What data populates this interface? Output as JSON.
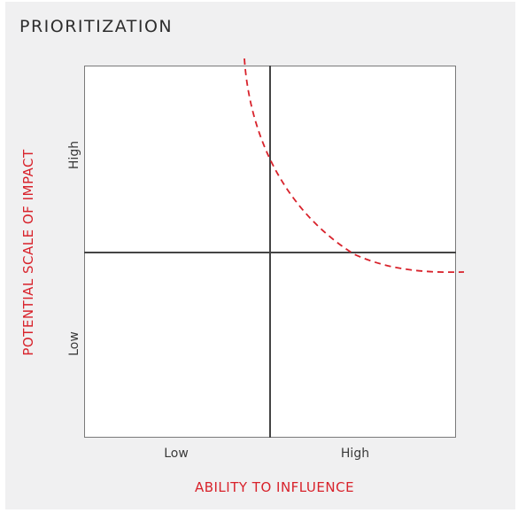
{
  "title": "PRIORITIZATION",
  "axes": {
    "x_label": "ABILITY TO INFLUENCE",
    "y_label": "POTENTIAL SCALE OF IMPACT",
    "x_ticks": [
      "Low",
      "High"
    ],
    "y_ticks": [
      "High",
      "Low"
    ]
  },
  "colors": {
    "accent": "#d8222b",
    "panel": "#f0f0f1",
    "grid": "#444444"
  }
}
